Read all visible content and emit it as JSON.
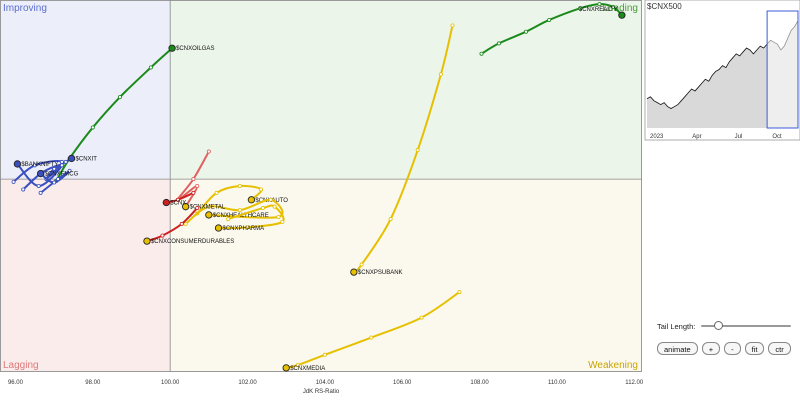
{
  "chart_data": {
    "type": "scatter",
    "subtype": "relative-rotation-graph",
    "xlabel": "JdK RS-Ratio",
    "ylabel": "",
    "xlim": [
      95.6,
      112.2
    ],
    "ylim": [
      97.2,
      102.6
    ],
    "center": {
      "x": 100,
      "y": 100
    },
    "xticks": [
      "96.00",
      "98.00",
      "100.00",
      "102.00",
      "104.00",
      "106.00",
      "108.00",
      "110.00",
      "112.00"
    ],
    "grid": false,
    "quadrants": [
      {
        "name": "Improving",
        "position": "top-left",
        "fill": "#eceef9",
        "text_color": "#5b6fd0"
      },
      {
        "name": "Leading",
        "position": "top-right",
        "fill": "#ecf5ea",
        "text_color": "#4b9a3a"
      },
      {
        "name": "Lagging",
        "position": "bottom-left",
        "fill": "#fbecec",
        "text_color": "#dc7a7a"
      },
      {
        "name": "Weakening",
        "position": "bottom-right",
        "fill": "#fbf9ee",
        "text_color": "#c9a400"
      }
    ],
    "series": [
      {
        "name": "$CNXREALTY",
        "color": "#1a8a1a",
        "head_fill": "#1a8a1a",
        "points": [
          [
            108.05,
            101.82
          ],
          [
            108.5,
            101.97
          ],
          [
            109.2,
            102.14
          ],
          [
            109.8,
            102.31
          ],
          [
            110.6,
            102.48
          ],
          [
            111.1,
            102.54
          ],
          [
            111.45,
            102.5
          ],
          [
            111.68,
            102.38
          ]
        ]
      },
      {
        "name": "$CNXOILGAS",
        "color": "#1a8a1a",
        "head_fill": "#1a8a1a",
        "points": [
          [
            97.05,
            99.97
          ],
          [
            97.4,
            100.3
          ],
          [
            98.0,
            100.75
          ],
          [
            98.7,
            101.19
          ],
          [
            99.5,
            101.62
          ],
          [
            100.05,
            101.9
          ]
        ]
      },
      {
        "name": "$CNXIT",
        "color": "#3a4fc0",
        "head_fill": "#3a4fc0",
        "points": [
          [
            95.95,
            99.96
          ],
          [
            96.5,
            100.2
          ],
          [
            97.2,
            100.25
          ],
          [
            96.8,
            100.0
          ],
          [
            97.0,
            100.15
          ],
          [
            97.3,
            100.25
          ],
          [
            97.45,
            100.3
          ]
        ]
      },
      {
        "name": "$BANKNIFTY",
        "color": "#3a4fc0",
        "head_fill": "#3a4fc0",
        "points": [
          [
            96.2,
            99.85
          ],
          [
            96.7,
            100.1
          ],
          [
            97.2,
            100.2
          ],
          [
            96.6,
            99.9
          ],
          [
            96.05,
            100.22
          ]
        ]
      },
      {
        "name": "$CNXFMCG",
        "color": "#3a4fc0",
        "head_fill": "#3a4fc0",
        "points": [
          [
            96.65,
            99.8
          ],
          [
            97.1,
            100.0
          ],
          [
            97.4,
            100.12
          ],
          [
            97.0,
            99.95
          ],
          [
            96.65,
            100.08
          ]
        ]
      },
      {
        "name": "$CNXPSUBANK",
        "color": "#e6c000",
        "head_fill": "#e6c000",
        "points": [
          [
            107.3,
            102.23
          ],
          [
            107.0,
            101.52
          ],
          [
            106.4,
            100.42
          ],
          [
            105.7,
            99.42
          ],
          [
            104.95,
            98.76
          ],
          [
            104.75,
            98.65
          ]
        ]
      },
      {
        "name": "$CNXMEDIA",
        "color": "#e6c000",
        "head_fill": "#e6c000",
        "points": [
          [
            107.48,
            98.36
          ],
          [
            106.5,
            97.99
          ],
          [
            105.2,
            97.7
          ],
          [
            104.0,
            97.45
          ],
          [
            103.3,
            97.3
          ],
          [
            103.0,
            97.26
          ]
        ]
      },
      {
        "name": "$CNXAUTO",
        "color": "#e6c000",
        "head_fill": "#e6c000",
        "points": [
          [
            100.7,
            99.5
          ],
          [
            101.2,
            99.8
          ],
          [
            101.8,
            99.9
          ],
          [
            102.35,
            99.85
          ],
          [
            102.1,
            99.7
          ]
        ]
      },
      {
        "name": "$CNXHEALTHCARE",
        "color": "#e6c000",
        "head_fill": "#e6c000",
        "points": [
          [
            100.4,
            99.35
          ],
          [
            101.0,
            99.6
          ],
          [
            101.8,
            99.55
          ],
          [
            102.6,
            99.7
          ],
          [
            102.8,
            99.45
          ],
          [
            101.0,
            99.48
          ]
        ]
      },
      {
        "name": "$CNXPHARMA",
        "color": "#e6c000",
        "head_fill": "#e6c000",
        "points": [
          [
            101.5,
            99.42
          ],
          [
            102.4,
            99.58
          ],
          [
            102.7,
            99.6
          ],
          [
            102.9,
            99.38
          ],
          [
            102.0,
            99.3
          ],
          [
            101.25,
            99.29
          ]
        ]
      },
      {
        "name": "$CNXMETAL",
        "color": "#e06060",
        "head_fill": "#e6c000",
        "points": [
          [
            101.0,
            100.4
          ],
          [
            100.6,
            100.0
          ],
          [
            100.2,
            99.7
          ],
          [
            100.7,
            99.9
          ],
          [
            100.4,
            99.6
          ]
        ]
      },
      {
        "name": "$CNXCONSUMERDURABLES",
        "color": "#cc2020",
        "head_fill": "#e6c000",
        "points": [
          [
            100.7,
            99.58
          ],
          [
            100.3,
            99.35
          ],
          [
            99.8,
            99.18
          ],
          [
            99.4,
            99.1
          ]
        ]
      },
      {
        "name": "$CNX",
        "color": "#cc2020",
        "head_fill": "#cc2020",
        "points": [
          [
            100.6,
            99.8
          ],
          [
            100.2,
            99.7
          ],
          [
            99.9,
            99.66
          ]
        ]
      }
    ],
    "benchmark": {
      "name": "$CNX500",
      "x_labels": [
        "2023",
        "Apr",
        "Jul",
        "Oct"
      ],
      "values": [
        35,
        36,
        34,
        33,
        32,
        33,
        31,
        30,
        31,
        32,
        34,
        36,
        38,
        40,
        39,
        41,
        43,
        45,
        44,
        47,
        49,
        50,
        52,
        51,
        54,
        56,
        58,
        57,
        59,
        61,
        60,
        58,
        60,
        62,
        61,
        63,
        65,
        64,
        63,
        60,
        62,
        66,
        70,
        72,
        75
      ]
    }
  },
  "controls": {
    "tail_length_label": "Tail Length:",
    "tail_length_fraction": 0.15,
    "buttons": {
      "animate": "animate",
      "plus": "+",
      "minus": "-",
      "fit": "fit",
      "ctr": "ctr"
    }
  }
}
